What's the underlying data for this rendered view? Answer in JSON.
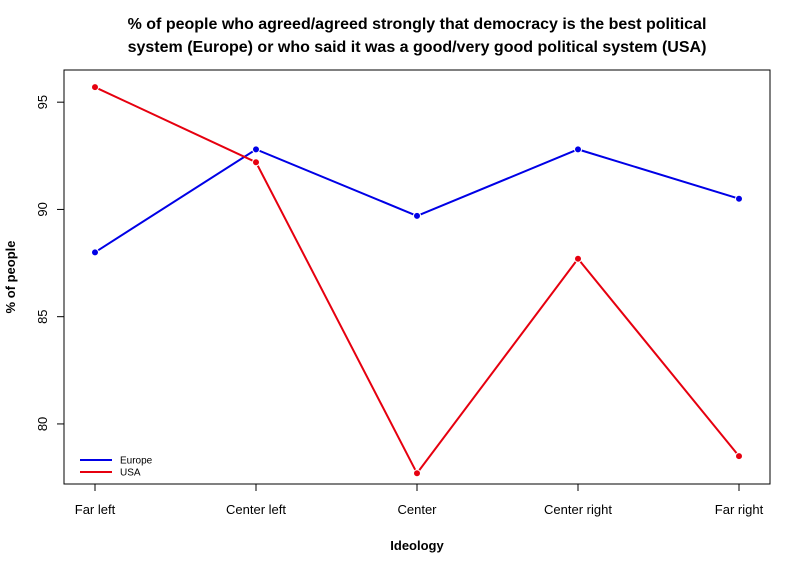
{
  "chart_data": {
    "type": "line",
    "title_lines": [
      "% of people who agreed/agreed strongly that democracy is the best political",
      "system (Europe) or who said it was a good/very good political system (USA)"
    ],
    "xlabel": "Ideology",
    "ylabel": "% of people",
    "categories": [
      "Far left",
      "Center left",
      "Center",
      "Center right",
      "Far right"
    ],
    "yticks": [
      80,
      85,
      90,
      95
    ],
    "ylim": [
      77.2,
      96.5
    ],
    "grid": false,
    "legend_position": "bottom-left",
    "series": [
      {
        "name": "Europe",
        "color": "#0000e6",
        "values": [
          88.0,
          92.8,
          89.7,
          92.8,
          90.5
        ]
      },
      {
        "name": "USA",
        "color": "#e6000f",
        "values": [
          95.7,
          92.2,
          77.7,
          87.7,
          78.5
        ]
      }
    ]
  }
}
